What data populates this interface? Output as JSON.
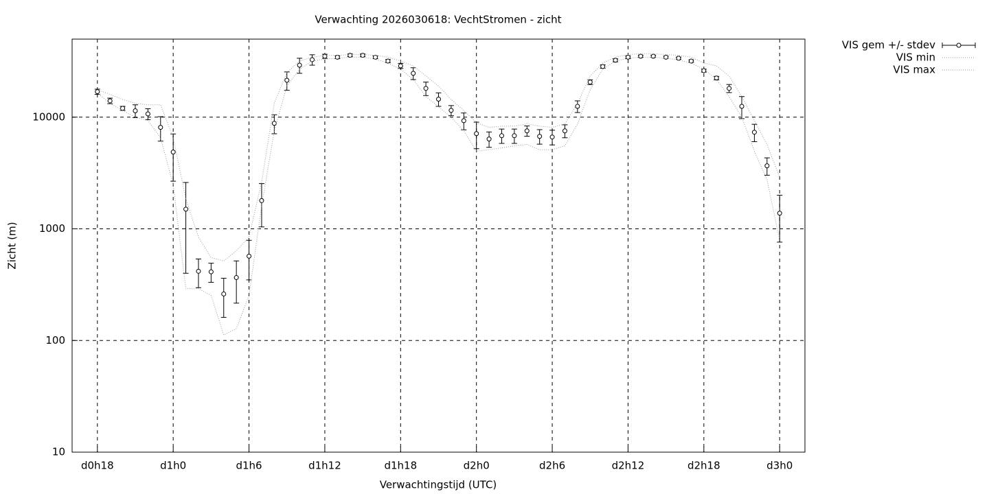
{
  "chart_data": {
    "type": "errorbar",
    "title": "Verwachting 2026030618: VechtStromen - zicht",
    "x_label": "Verwachtingstijd (UTC)",
    "y_label": "Zicht (m)",
    "log_y": true,
    "grid": true,
    "legend": "top-right-outside",
    "xlim": [
      16,
      74
    ],
    "ylim": [
      10,
      50000
    ],
    "xticks": [
      {
        "value": 18,
        "label": "d0h18"
      },
      {
        "value": 24,
        "label": "d1h0"
      },
      {
        "value": 30,
        "label": "d1h6"
      },
      {
        "value": 36,
        "label": "d1h12"
      },
      {
        "value": 42,
        "label": "d1h18"
      },
      {
        "value": 48,
        "label": "d2h0"
      },
      {
        "value": 54,
        "label": "d2h6"
      },
      {
        "value": 60,
        "label": "d2h12"
      },
      {
        "value": 66,
        "label": "d2h18"
      },
      {
        "value": 72,
        "label": "d3h0"
      }
    ],
    "yticks": [
      10,
      100,
      1000,
      10000
    ],
    "x": [
      18,
      19,
      20,
      21,
      22,
      23,
      24,
      25,
      26,
      27,
      28,
      29,
      30,
      31,
      32,
      33,
      34,
      35,
      36,
      37,
      38,
      39,
      40,
      41,
      42,
      43,
      44,
      45,
      46,
      47,
      48,
      49,
      50,
      51,
      52,
      53,
      54,
      55,
      56,
      57,
      58,
      59,
      60,
      61,
      62,
      63,
      64,
      65,
      66,
      67,
      68,
      69,
      70,
      71,
      72
    ],
    "series": [
      {
        "name": "VIS gem +/- stdev",
        "color": "#000000",
        "style": "errorbar",
        "values": [
          16900,
          14000,
          12000,
          11400,
          10700,
          8100,
          4870,
          1500,
          417,
          412,
          261,
          366,
          569,
          1790,
          8800,
          21400,
          29200,
          32700,
          35100,
          34400,
          35800,
          35800,
          34400,
          31800,
          28800,
          24700,
          18100,
          14500,
          11500,
          9300,
          7120,
          6370,
          6820,
          6820,
          7540,
          6730,
          6640,
          7540,
          12500,
          20600,
          28400,
          32300,
          34400,
          35100,
          35100,
          34400,
          33700,
          31800,
          26100,
          22400,
          18100,
          12500,
          7330,
          3670,
          1380
        ],
        "errors": [
          900,
          800,
          500,
          1500,
          1200,
          2000,
          2200,
          1100,
          120,
          80,
          100,
          150,
          220,
          750,
          1700,
          4000,
          4500,
          3500,
          1500,
          1000,
          1000,
          1000,
          1000,
          1000,
          1500,
          3000,
          2500,
          2000,
          1200,
          1600,
          1900,
          1000,
          1000,
          1000,
          800,
          1000,
          1000,
          1000,
          1500,
          1000,
          1000,
          1000,
          1000,
          800,
          800,
          800,
          800,
          800,
          800,
          800,
          1500,
          2800,
          1300,
          650,
          620
        ]
      },
      {
        "name": "VIS min",
        "color": "#999999",
        "style": "dotted",
        "values": [
          16500,
          13300,
          11500,
          10000,
          9320,
          6550,
          2460,
          291,
          291,
          253,
          112,
          128,
          253,
          1600,
          7540,
          19000,
          26900,
          31800,
          33100,
          33700,
          34400,
          34400,
          33100,
          30500,
          26900,
          21800,
          15300,
          12400,
          10000,
          7540,
          4950,
          5110,
          5300,
          5540,
          5700,
          5110,
          5110,
          5540,
          8700,
          17600,
          26900,
          31800,
          33700,
          34400,
          34400,
          33700,
          32500,
          30500,
          26900,
          21800,
          15300,
          10000,
          4950,
          2760,
          787
        ]
      },
      {
        "name": "VIS max",
        "color": "#999999",
        "style": "dotted",
        "values": [
          17600,
          16000,
          14400,
          13300,
          12900,
          12900,
          6550,
          1850,
          844,
          553,
          516,
          637,
          844,
          2630,
          13300,
          25100,
          31800,
          34400,
          35800,
          35800,
          36300,
          36300,
          35800,
          34400,
          31800,
          28800,
          23400,
          19000,
          14400,
          11500,
          8900,
          8110,
          8300,
          8300,
          8700,
          8300,
          8110,
          8700,
          13300,
          23400,
          30500,
          34400,
          36300,
          37000,
          37000,
          36300,
          35800,
          34400,
          30500,
          28800,
          23400,
          15300,
          9320,
          5700,
          2900
        ]
      }
    ]
  }
}
